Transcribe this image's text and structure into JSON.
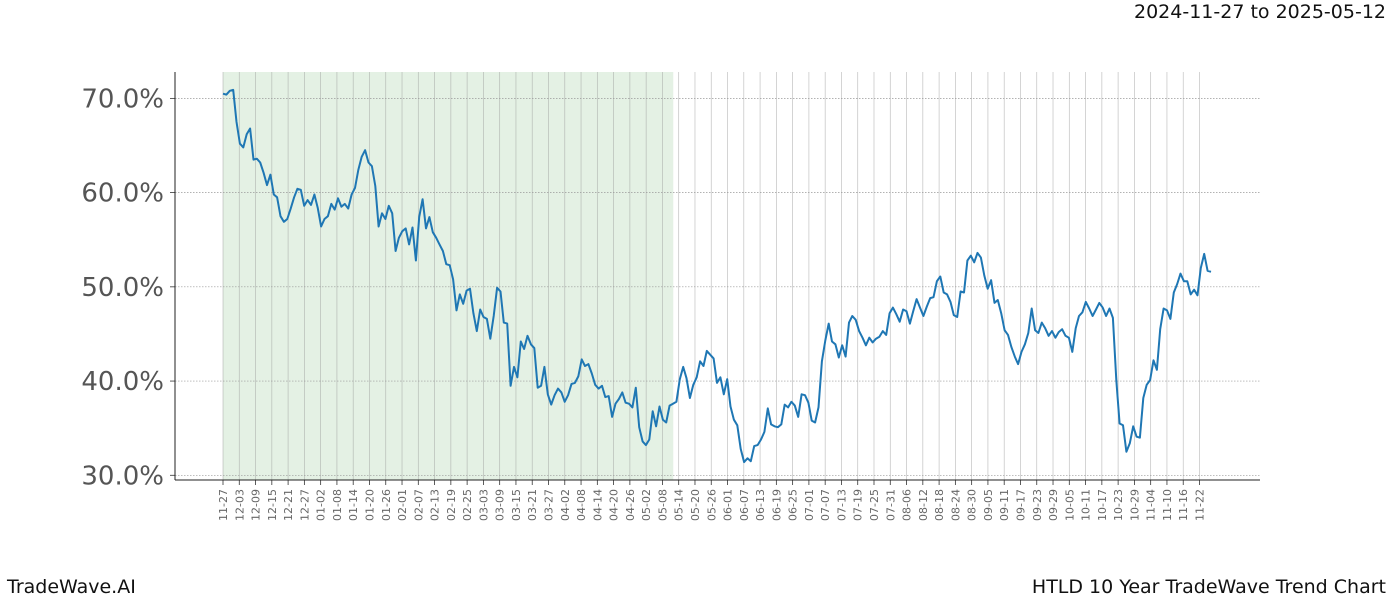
{
  "header": {
    "date_range": "2024-11-27 to 2025-05-12"
  },
  "footer": {
    "brand": "TradeWave.AI",
    "title": "HTLD 10 Year TradeWave Trend Chart"
  },
  "colors": {
    "line": "#1f77b4",
    "shade": "#d6e9d6",
    "grid": "#999999"
  },
  "chart_data": {
    "type": "line",
    "title": "",
    "xlabel": "",
    "ylabel": "",
    "ylim": [
      29.5,
      72.8
    ],
    "y_ticks": [
      30,
      40,
      50,
      60,
      70
    ],
    "y_tick_labels": [
      "30.0%",
      "40.0%",
      "50.0%",
      "60.0%",
      "70.0%"
    ],
    "grid": true,
    "x_tick_labels": [
      "11-27",
      "12-03",
      "12-09",
      "12-15",
      "12-21",
      "12-27",
      "01-02",
      "01-08",
      "01-14",
      "01-20",
      "01-26",
      "02-01",
      "02-07",
      "02-13",
      "02-19",
      "02-25",
      "03-03",
      "03-09",
      "03-15",
      "03-21",
      "03-27",
      "04-02",
      "04-08",
      "04-14",
      "04-20",
      "04-26",
      "05-02",
      "05-08",
      "05-14",
      "05-20",
      "05-26",
      "06-01",
      "06-07",
      "06-13",
      "06-19",
      "06-25",
      "07-01",
      "07-07",
      "07-13",
      "07-19",
      "07-25",
      "07-31",
      "08-06",
      "08-12",
      "08-18",
      "08-24",
      "08-30",
      "09-05",
      "09-11",
      "09-17",
      "09-23",
      "09-29",
      "10-05",
      "10-11",
      "10-17",
      "10-23",
      "10-29",
      "11-04",
      "11-10",
      "11-16",
      "11-22"
    ],
    "shaded_range": {
      "start": "11-27",
      "end": "05-12"
    },
    "series": [
      {
        "values": [
          70.5,
          70.4,
          70.8,
          70.9,
          67.5,
          65.2,
          64.8,
          66.2,
          66.8,
          63.5,
          63.6,
          63.2,
          62.1,
          60.8,
          61.9,
          59.8,
          59.5,
          57.5,
          56.9,
          57.2,
          58.3,
          59.5,
          60.4,
          60.3,
          58.6,
          59.2,
          58.7,
          59.8,
          58.4,
          56.4,
          57.2,
          57.5,
          58.8,
          58.2,
          59.4,
          58.5,
          58.8,
          58.3,
          59.8,
          60.5,
          62.4,
          63.8,
          64.5,
          63.2,
          62.8,
          60.7,
          56.4,
          57.8,
          57.2,
          58.6,
          57.8,
          53.8,
          55.2,
          55.9,
          56.2,
          54.5,
          56.3,
          52.8,
          57.4,
          59.3,
          56.2,
          57.4,
          55.8,
          55.2,
          54.5,
          53.8,
          52.4,
          52.3,
          50.8,
          47.5,
          49.2,
          48.2,
          49.6,
          49.8,
          47.2,
          45.3,
          47.6,
          46.8,
          46.6,
          44.5,
          46.9,
          49.9,
          49.5,
          46.2,
          46.1,
          39.5,
          41.5,
          40.4,
          44.2,
          43.4,
          44.8,
          43.9,
          43.5,
          39.3,
          39.5,
          41.5,
          38.6,
          37.5,
          38.5,
          39.2,
          38.8,
          37.8,
          38.5,
          39.7,
          39.8,
          40.5,
          42.3,
          41.6,
          41.8,
          40.8,
          39.6,
          39.2,
          39.5,
          38.3,
          38.4,
          36.2,
          37.6,
          38.1,
          38.8,
          37.7,
          37.6,
          37.2,
          39.3,
          35.1,
          33.6,
          33.2,
          33.8,
          36.8,
          35.2,
          37.3,
          35.9,
          35.6,
          37.4,
          37.6,
          37.8,
          40.2,
          41.5,
          40.3,
          38.2,
          39.6,
          40.4,
          42.1,
          41.6,
          43.2,
          42.8,
          42.4,
          39.8,
          40.4,
          38.6,
          40.2,
          37.3,
          35.9,
          35.3,
          32.8,
          31.4,
          31.8,
          31.5,
          33.1,
          33.2,
          33.8,
          34.6,
          37.1,
          35.4,
          35.2,
          35.1,
          35.4,
          37.5,
          37.2,
          37.8,
          37.4,
          36.2,
          38.6,
          38.5,
          37.7,
          35.8,
          35.6,
          37.2,
          42.1,
          44.3,
          46.1,
          44.2,
          43.9,
          42.5,
          43.8,
          42.6,
          46.2,
          46.9,
          46.5,
          45.3,
          44.6,
          43.8,
          44.6,
          44.1,
          44.5,
          44.7,
          45.3,
          44.9,
          47.2,
          47.8,
          47.1,
          46.3,
          47.6,
          47.4,
          46.1,
          47.4,
          48.7,
          47.8,
          46.9,
          47.9,
          48.8,
          48.9,
          50.6,
          51.1,
          49.4,
          49.2,
          48.4,
          47.0,
          46.8,
          49.5,
          49.4,
          52.8,
          53.3,
          52.6,
          53.6,
          53.1,
          51.2,
          49.8,
          50.7,
          48.3,
          48.6,
          47.2,
          45.4,
          44.9,
          43.6,
          42.6,
          41.8,
          43.1,
          43.9,
          45.1,
          47.7,
          45.4,
          45.1,
          46.2,
          45.6,
          44.8,
          45.3,
          44.6,
          45.2,
          45.5,
          44.8,
          44.6,
          43.1,
          45.6,
          46.9,
          47.3,
          48.4,
          47.7,
          46.9,
          47.6,
          48.3,
          47.8,
          46.9,
          47.7,
          46.7,
          40.1,
          35.5,
          35.3,
          32.5,
          33.4,
          35.2,
          34.1,
          34.0,
          38.2,
          39.6,
          40.1,
          42.2,
          41.2,
          45.5,
          47.7,
          47.5,
          46.6,
          49.4,
          50.3,
          51.4,
          50.6,
          50.6,
          49.2,
          49.7,
          49.1,
          52.0,
          53.5,
          51.7,
          51.6
        ]
      }
    ]
  }
}
